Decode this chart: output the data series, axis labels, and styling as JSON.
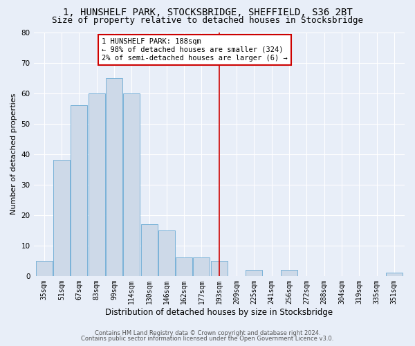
{
  "title1": "1, HUNSHELF PARK, STOCKSBRIDGE, SHEFFIELD, S36 2BT",
  "title2": "Size of property relative to detached houses in Stocksbridge",
  "xlabel": "Distribution of detached houses by size in Stocksbridge",
  "ylabel": "Number of detached properties",
  "categories": [
    "35sqm",
    "51sqm",
    "67sqm",
    "83sqm",
    "99sqm",
    "114sqm",
    "130sqm",
    "146sqm",
    "162sqm",
    "177sqm",
    "193sqm",
    "209sqm",
    "225sqm",
    "241sqm",
    "256sqm",
    "272sqm",
    "288sqm",
    "304sqm",
    "319sqm",
    "335sqm",
    "351sqm"
  ],
  "values": [
    5,
    38,
    56,
    60,
    65,
    60,
    17,
    15,
    6,
    6,
    5,
    0,
    2,
    0,
    2,
    0,
    0,
    0,
    0,
    0,
    1
  ],
  "bar_color": "#cdd9e8",
  "bar_edge_color": "#6aaad4",
  "vline_x": 10,
  "annotation_text": "1 HUNSHELF PARK: 188sqm\n← 98% of detached houses are smaller (324)\n2% of semi-detached houses are larger (6) →",
  "annotation_box_color": "#ffffff",
  "annotation_box_edge_color": "#cc0000",
  "ylim": [
    0,
    80
  ],
  "yticks": [
    0,
    10,
    20,
    30,
    40,
    50,
    60,
    70,
    80
  ],
  "footer1": "Contains HM Land Registry data © Crown copyright and database right 2024.",
  "footer2": "Contains public sector information licensed under the Open Government Licence v3.0.",
  "bg_color": "#e8eef8",
  "plot_bg_color": "#e8eef8",
  "vline_color": "#cc0000",
  "title_fontsize": 10,
  "subtitle_fontsize": 9,
  "tick_fontsize": 7,
  "ylabel_fontsize": 8,
  "xlabel_fontsize": 8.5,
  "annot_fontsize": 7.5,
  "footer_fontsize": 6
}
